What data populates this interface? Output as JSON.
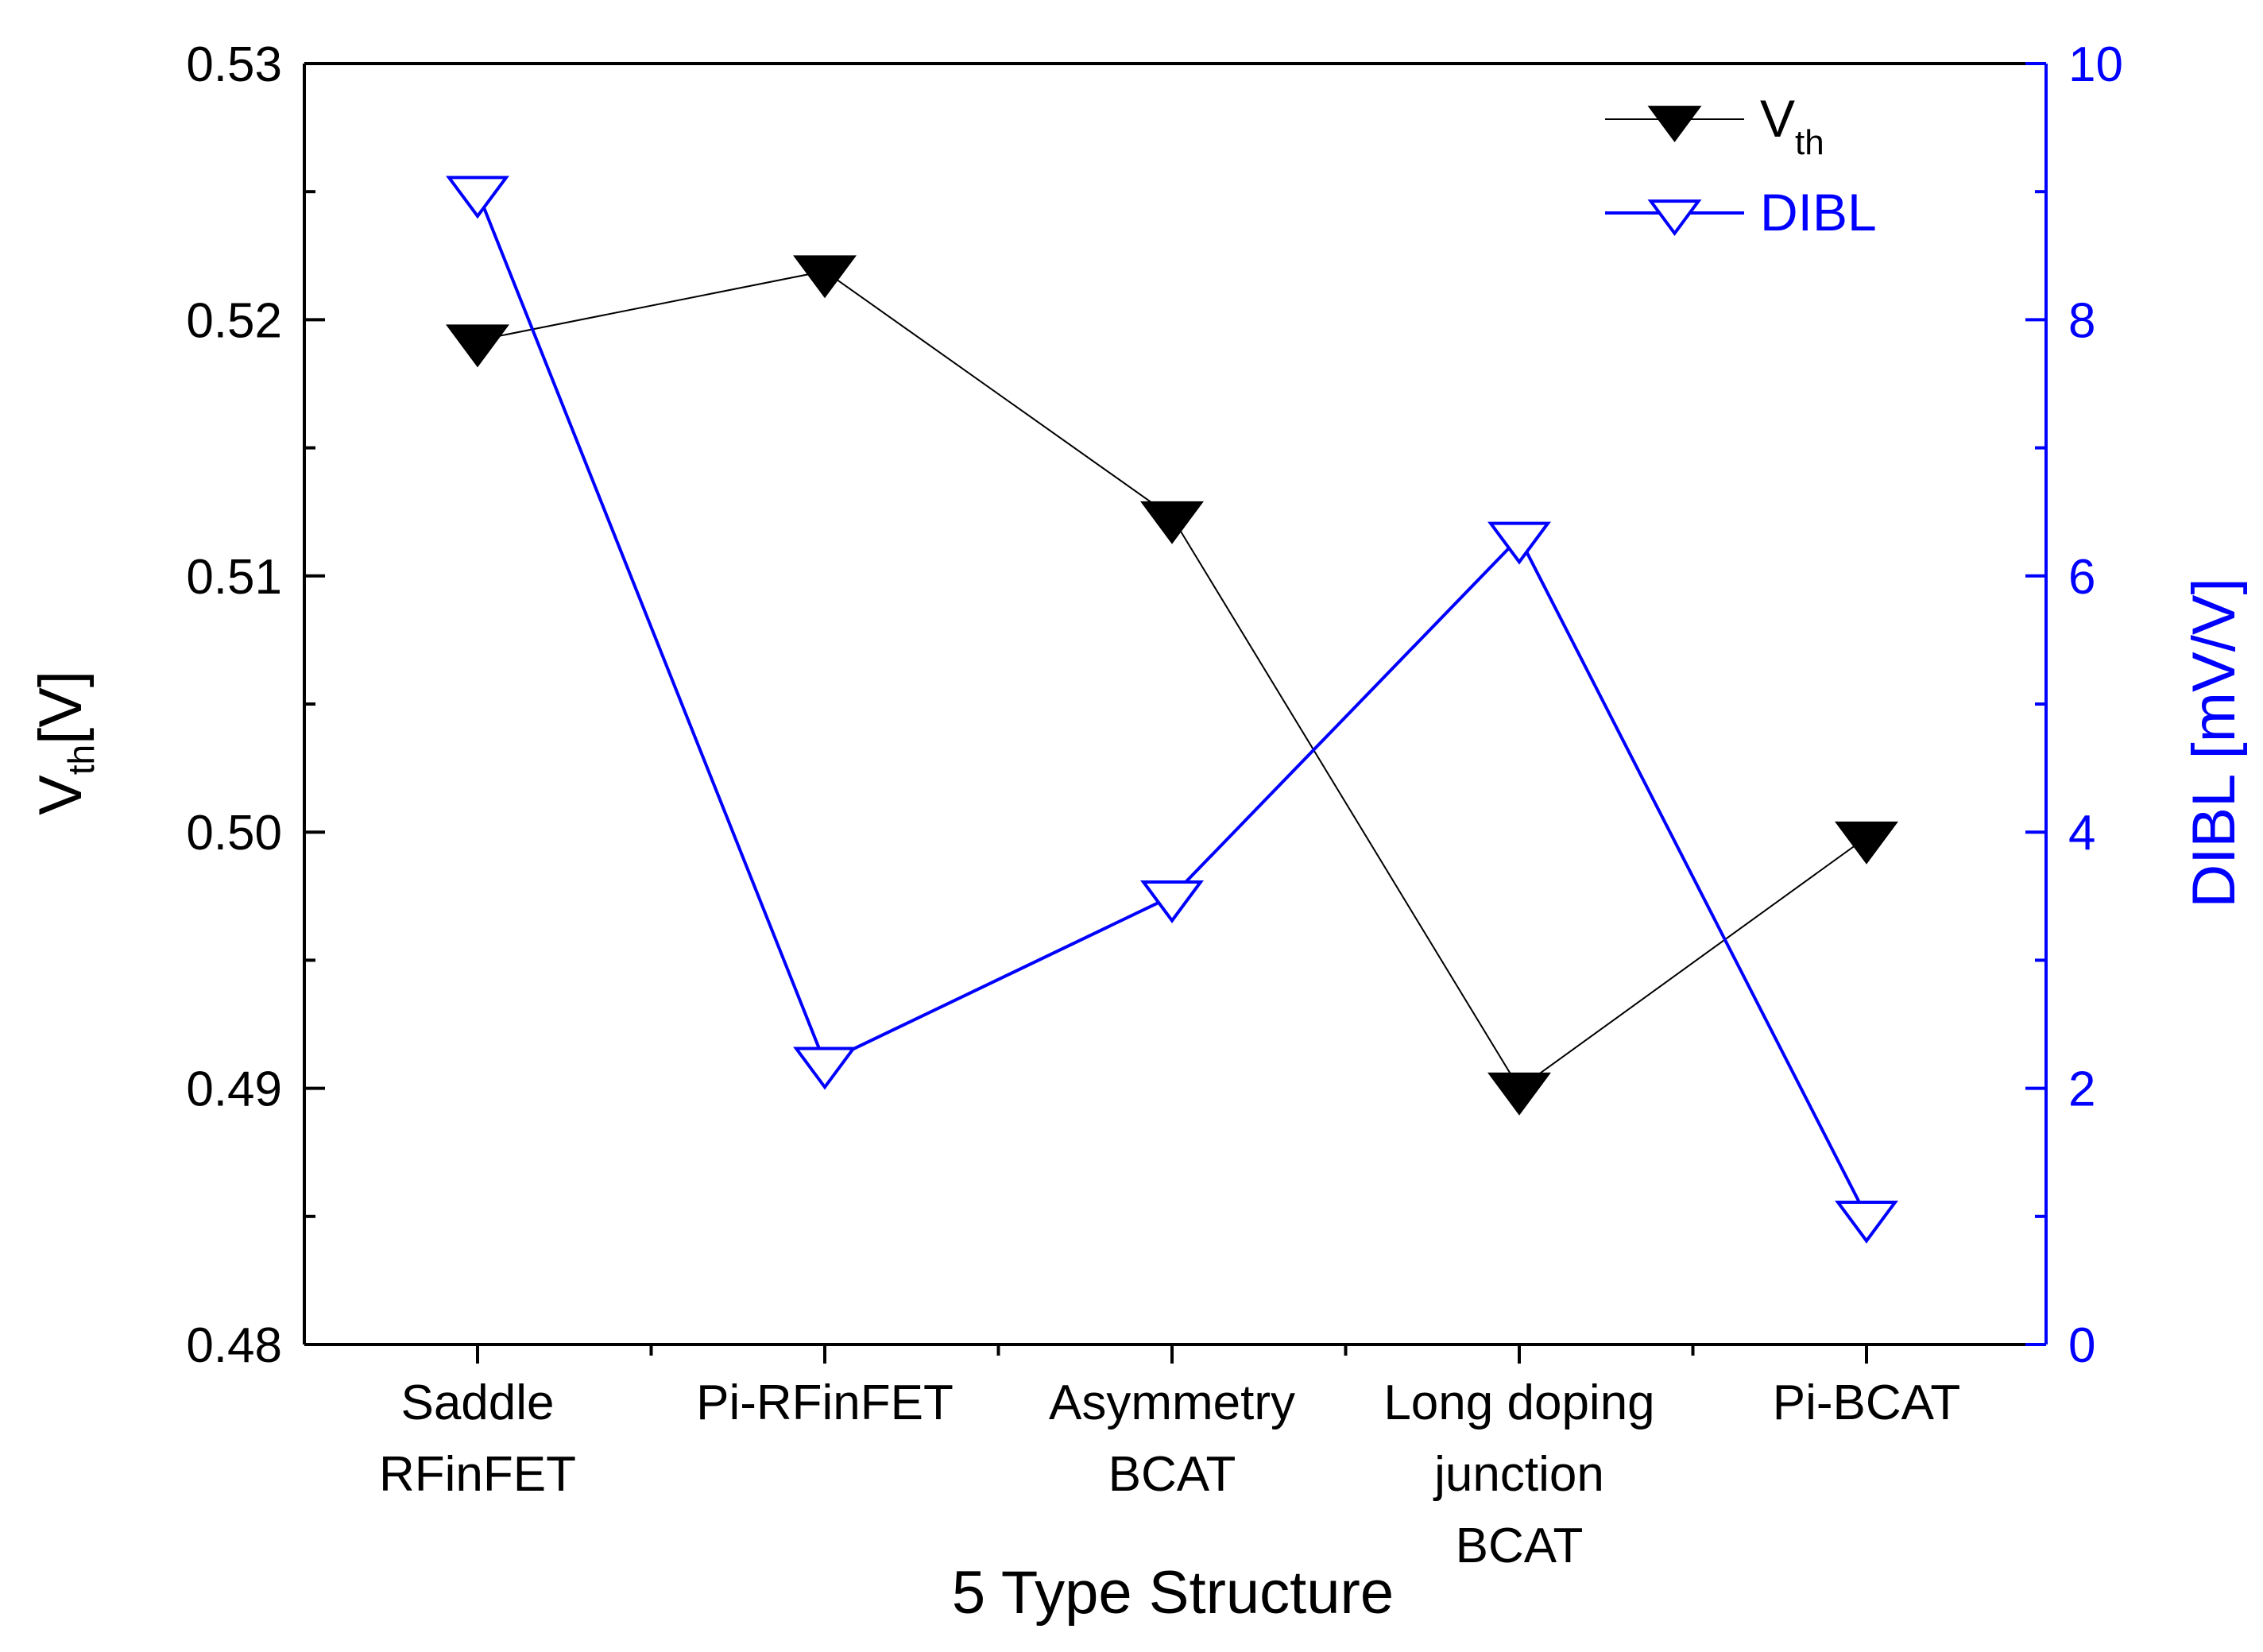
{
  "chart_data": {
    "type": "line",
    "title": "",
    "xlabel": "5 Type Structure",
    "categories": [
      [
        "Saddle",
        "RFinFET"
      ],
      [
        "Pi-RFinFET"
      ],
      [
        "Asymmetry",
        "BCAT"
      ],
      [
        "Long doping",
        "junction",
        "BCAT"
      ],
      [
        "Pi-BCAT"
      ]
    ],
    "y_left": {
      "label_main": "V",
      "label_sub": "th",
      "label_suffix": "[V]",
      "ylim": [
        0.48,
        0.53
      ],
      "ticks": [
        0.48,
        0.49,
        0.5,
        0.51,
        0.52,
        0.53
      ],
      "tick_labels": [
        "0.48",
        "0.49",
        "0.50",
        "0.51",
        "0.52",
        "0.53"
      ],
      "color": "#000000"
    },
    "y_right": {
      "label": "DIBL [mV/V]",
      "ylim": [
        0,
        10
      ],
      "ticks": [
        0,
        2,
        4,
        6,
        8,
        10
      ],
      "tick_labels": [
        "0",
        "2",
        "4",
        "6",
        "8",
        "10"
      ],
      "color": "#0000ff"
    },
    "series": [
      {
        "name": "Vth",
        "legend_main": "V",
        "legend_sub": "th",
        "axis": "left",
        "marker": "filled-down-triangle",
        "color": "#000000",
        "values": [
          0.5192,
          0.5219,
          0.5123,
          0.49,
          0.4998
        ]
      },
      {
        "name": "DIBL",
        "legend_main": "DIBL",
        "legend_sub": "",
        "axis": "right",
        "marker": "open-down-triangle",
        "color": "#0000ff",
        "values": [
          9.0,
          2.2,
          3.5,
          6.3,
          1.0
        ]
      }
    ],
    "legend_position": "top-right",
    "grid": false
  }
}
